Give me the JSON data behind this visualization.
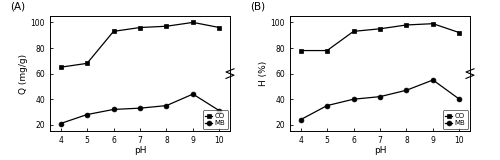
{
  "pH": [
    4,
    5,
    6,
    7,
    8,
    9,
    10
  ],
  "A_CO": [
    65,
    68,
    93,
    96,
    97,
    100,
    96
  ],
  "A_MB": [
    21,
    28,
    32,
    33,
    35,
    44,
    31
  ],
  "B_CO": [
    78,
    78,
    93,
    95,
    98,
    99,
    92
  ],
  "B_MB": [
    24,
    35,
    40,
    42,
    47,
    55,
    40
  ],
  "A_ylabel": "Q (mg/g)",
  "B_ylabel": "H (%)",
  "xlabel": "pH",
  "A_label": "(A)",
  "B_label": "(B)",
  "A_ylim": [
    15,
    105
  ],
  "B_ylim": [
    15,
    105
  ],
  "A_yticks": [
    20,
    40,
    60,
    80,
    100
  ],
  "B_yticks": [
    20,
    40,
    60,
    80,
    100
  ],
  "xticks": [
    4,
    5,
    6,
    7,
    8,
    9,
    10
  ],
  "line_color": "black",
  "legend_CO": "CO",
  "legend_MB": "MB",
  "background_color": "white",
  "figsize": [
    5.0,
    1.6
  ],
  "dpi": 100
}
